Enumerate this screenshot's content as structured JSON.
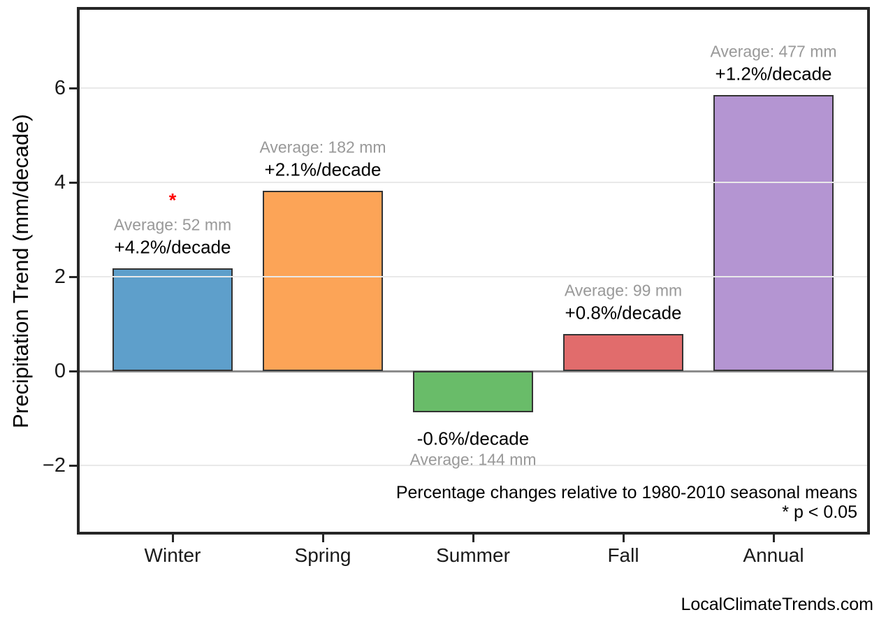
{
  "chart_data": {
    "type": "bar",
    "title": "",
    "ylabel": "Precipitation Trend (mm/decade)",
    "xlabel": "",
    "categories": [
      "Winter",
      "Spring",
      "Summer",
      "Fall",
      "Annual"
    ],
    "values": [
      2.18,
      3.82,
      -0.88,
      0.78,
      5.85
    ],
    "values_unit": "mm/decade",
    "bar_colors": [
      "#5E9FCB",
      "#FCA457",
      "#69BC69",
      "#E16C6C",
      "#B495D2"
    ],
    "bar_edge_color": "#333333",
    "averages_mm": [
      52,
      182,
      144,
      99,
      477
    ],
    "pct_per_decade": [
      4.2,
      2.1,
      -0.6,
      0.8,
      1.2
    ],
    "annotations": [
      {
        "average": "Average: 52 mm",
        "pct": "+4.2%/decade",
        "significant": true
      },
      {
        "average": "Average: 182 mm",
        "pct": "+2.1%/decade",
        "significant": false
      },
      {
        "average": "Average: 144 mm",
        "pct": "-0.6%/decade",
        "significant": false
      },
      {
        "average": "Average: 99 mm",
        "pct": "+0.8%/decade",
        "significant": false
      },
      {
        "average": "Average: 477 mm",
        "pct": "+1.2%/decade",
        "significant": false
      }
    ],
    "significance_marker": "*",
    "yticks": [
      -2,
      0,
      2,
      4,
      6
    ],
    "ylim": [
      -3.4,
      7.7
    ],
    "grid": true,
    "legend": null,
    "footnote_line1": "Percentage changes relative to 1980-2010 seasonal means",
    "footnote_line2": "* p < 0.05"
  },
  "colors": {
    "background": "#ffffff",
    "plot_border": "#262626",
    "gridline": "#e9e9e9",
    "zero_line": "#8c8c8c",
    "average_text": "#999999",
    "pct_text": "#000000",
    "significance": "#ff0000",
    "tick_text": "#1a1a1a"
  },
  "watermark": "LocalClimateTrends.com"
}
